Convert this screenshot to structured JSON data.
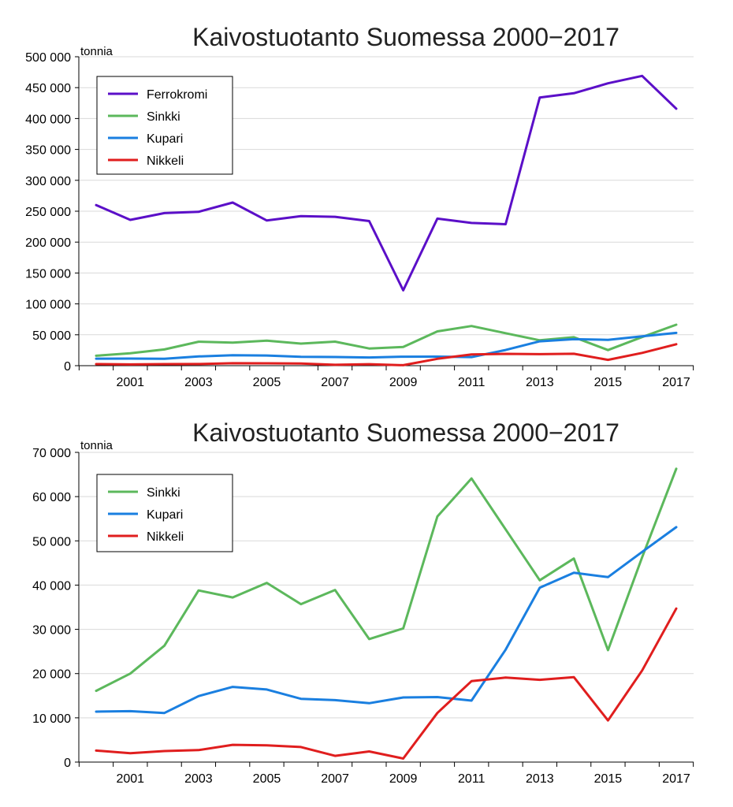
{
  "chart_data": [
    {
      "type": "line",
      "title": "Kaivostuotanto Suomessa 2000−2017",
      "ylabel": "tonnia",
      "xlabel": "",
      "x": [
        2000,
        2001,
        2002,
        2003,
        2004,
        2005,
        2006,
        2007,
        2008,
        2009,
        2010,
        2011,
        2012,
        2013,
        2014,
        2015,
        2016,
        2017
      ],
      "x_tick_labels": [
        "2001",
        "2003",
        "2005",
        "2007",
        "2009",
        "2011",
        "2013",
        "2015",
        "2017"
      ],
      "ylim": [
        0,
        500000
      ],
      "y_tick_labels": [
        "0",
        "50 000",
        "100 000",
        "150 000",
        "200 000",
        "250 000",
        "300 000",
        "350 000",
        "400 000",
        "450 000",
        "500 000"
      ],
      "grid": "horizontal",
      "legend": "top-left",
      "series": [
        {
          "name": "Ferrokromi",
          "color": "#5b0fc8",
          "values": [
            260000,
            236000,
            247000,
            249000,
            264000,
            235000,
            242000,
            241000,
            234000,
            122000,
            238000,
            231000,
            229000,
            434000,
            441000,
            457000,
            469000,
            416000
          ]
        },
        {
          "name": "Sinkki",
          "color": "#5cb85c",
          "values": [
            16100,
            20000,
            26300,
            38800,
            37200,
            40500,
            35700,
            38900,
            27800,
            30200,
            55500,
            64100,
            52600,
            41100,
            46000,
            25300,
            46300,
            66300
          ]
        },
        {
          "name": "Kupari",
          "color": "#1a7fe0",
          "values": [
            11400,
            11500,
            11100,
            14900,
            17000,
            16400,
            14300,
            14000,
            13300,
            14600,
            14700,
            13900,
            25400,
            39400,
            42800,
            41800,
            47500,
            53100
          ]
        },
        {
          "name": "Nikkeli",
          "color": "#e01e1e",
          "values": [
            2600,
            2000,
            2500,
            2700,
            3900,
            3800,
            3400,
            1400,
            2400,
            800,
            11100,
            18300,
            19100,
            18600,
            19200,
            9400,
            20700,
            34700
          ]
        }
      ]
    },
    {
      "type": "line",
      "title": "Kaivostuotanto Suomessa 2000−2017",
      "ylabel": "tonnia",
      "xlabel": "",
      "x": [
        2000,
        2001,
        2002,
        2003,
        2004,
        2005,
        2006,
        2007,
        2008,
        2009,
        2010,
        2011,
        2012,
        2013,
        2014,
        2015,
        2016,
        2017
      ],
      "x_tick_labels": [
        "2001",
        "2003",
        "2005",
        "2007",
        "2009",
        "2011",
        "2013",
        "2015",
        "2017"
      ],
      "ylim": [
        0,
        70000
      ],
      "y_tick_labels": [
        "0",
        "10 000",
        "20 000",
        "30 000",
        "40 000",
        "50 000",
        "60 000",
        "70 000"
      ],
      "grid": "horizontal",
      "legend": "top-left",
      "series": [
        {
          "name": "Sinkki",
          "color": "#5cb85c",
          "values": [
            16100,
            20000,
            26300,
            38800,
            37200,
            40500,
            35700,
            38900,
            27800,
            30200,
            55500,
            64100,
            52600,
            41100,
            46000,
            25300,
            46300,
            66300
          ]
        },
        {
          "name": "Kupari",
          "color": "#1a7fe0",
          "values": [
            11400,
            11500,
            11100,
            14900,
            17000,
            16400,
            14300,
            14000,
            13300,
            14600,
            14700,
            13900,
            25400,
            39400,
            42800,
            41800,
            47500,
            53100
          ]
        },
        {
          "name": "Nikkeli",
          "color": "#e01e1e",
          "values": [
            2600,
            2000,
            2500,
            2700,
            3900,
            3800,
            3400,
            1400,
            2400,
            800,
            11100,
            18300,
            19100,
            18600,
            19200,
            9400,
            20700,
            34700
          ]
        }
      ]
    }
  ]
}
